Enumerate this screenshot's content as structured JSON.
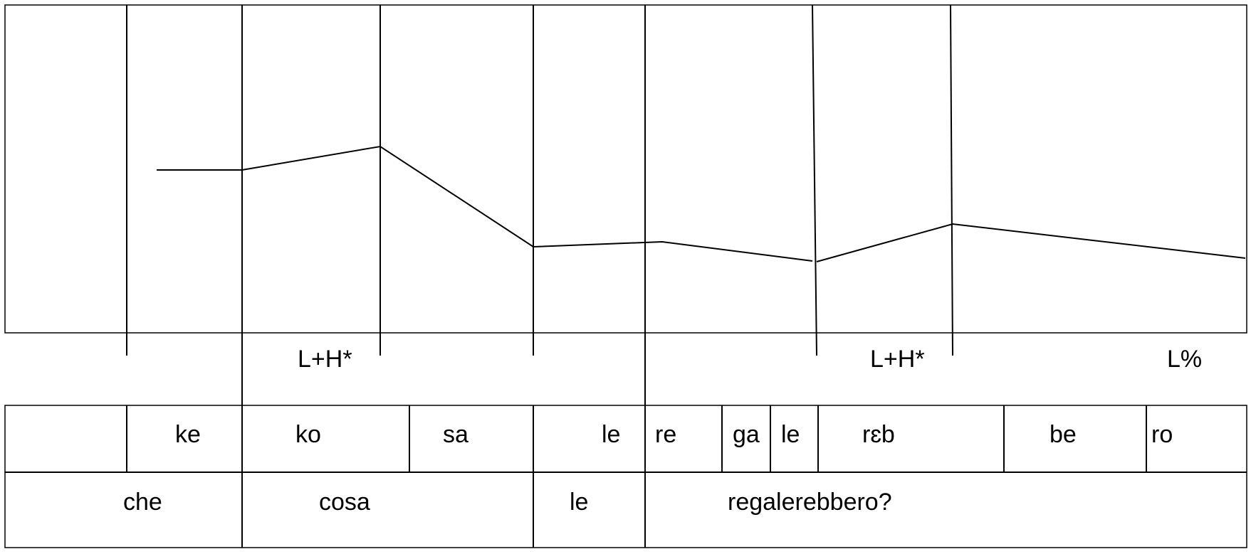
{
  "tones": {
    "t1": "L+H*",
    "t2": "L+H*",
    "t3": "L%"
  },
  "syllables": [
    "ke",
    "ko",
    "sa",
    "le",
    "re",
    "ga",
    "le",
    "rɛb",
    "be",
    "ro"
  ],
  "words": [
    "che",
    "cosa",
    "le",
    "regalerebbero?"
  ]
}
